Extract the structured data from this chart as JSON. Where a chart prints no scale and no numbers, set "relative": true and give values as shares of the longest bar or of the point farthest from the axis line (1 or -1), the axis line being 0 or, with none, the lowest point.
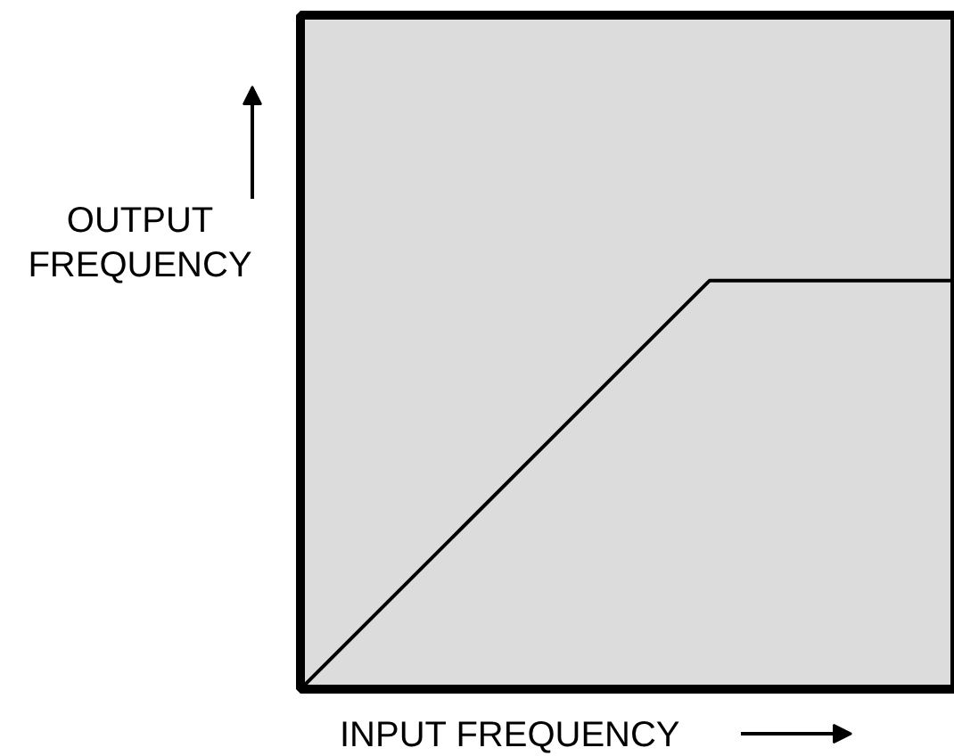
{
  "chart_data": {
    "type": "line",
    "relative": true,
    "xlabel": "INPUT FREQUENCY",
    "ylabel": "OUTPUT FREQUENCY",
    "categories": [
      null,
      null,
      null,
      null,
      null,
      null,
      null,
      null,
      null
    ],
    "series": [
      {
        "color": "#000000",
        "values": [
          0,
          0.2,
          0.4,
          0.6,
          0.8,
          1,
          1,
          1,
          1
        ]
      }
    ],
    "tick_labels": false,
    "grid": false,
    "marker": "none",
    "line_style": "solid"
  }
}
